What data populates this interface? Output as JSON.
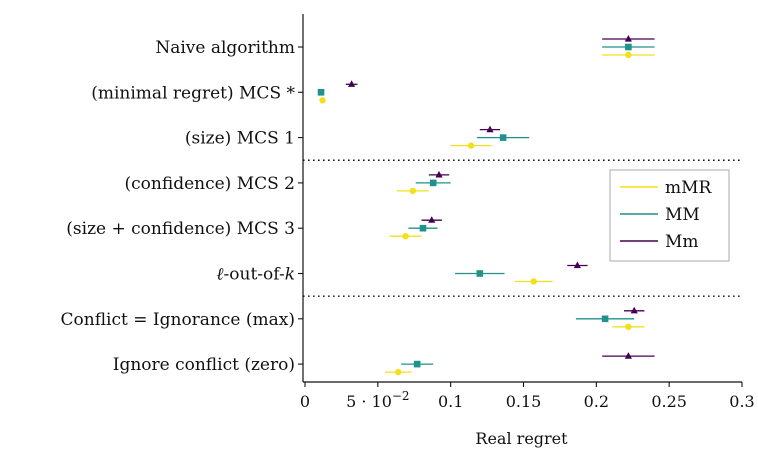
{
  "chart_data": {
    "type": "scatter",
    "subtype": "interval-dot-plot",
    "xlabel": "Real regret",
    "xlim": [
      0,
      0.3
    ],
    "xticks": [
      {
        "value": 0,
        "label": "0"
      },
      {
        "value": 0.05,
        "label": "5·10^-2",
        "base": "5 · 10",
        "exp": "−2"
      },
      {
        "value": 0.1,
        "label": "0.1"
      },
      {
        "value": 0.15,
        "label": "0.15"
      },
      {
        "value": 0.2,
        "label": "0.2"
      },
      {
        "value": 0.25,
        "label": "0.25"
      },
      {
        "value": 0.3,
        "label": "0.3"
      }
    ],
    "categories": [
      "Naive algorithm",
      "(minimal regret) MCS *",
      "(size) MCS 1",
      "(confidence) MCS 2",
      "(size + confidence) MCS 3",
      "ℓ-out-of-k",
      "Conflict = Ignorance (max)",
      "Ignore conflict (zero)"
    ],
    "separators_after_category_index": [
      2,
      5
    ],
    "grid": false,
    "legend_position": "right",
    "series": [
      {
        "name": "mMR",
        "color": "#f2e01b",
        "marker": "circle",
        "values": [
          {
            "mean": 0.222,
            "lo": 0.204,
            "hi": 0.24
          },
          {
            "mean": 0.012,
            "lo": 0.01,
            "hi": 0.014
          },
          {
            "mean": 0.114,
            "lo": 0.1,
            "hi": 0.128
          },
          {
            "mean": 0.074,
            "lo": 0.063,
            "hi": 0.085
          },
          {
            "mean": 0.069,
            "lo": 0.058,
            "hi": 0.08
          },
          {
            "mean": 0.157,
            "lo": 0.144,
            "hi": 0.17
          },
          {
            "mean": 0.222,
            "lo": 0.211,
            "hi": 0.233
          },
          {
            "mean": 0.064,
            "lo": 0.055,
            "hi": 0.073
          }
        ]
      },
      {
        "name": "MM",
        "color": "#21918c",
        "marker": "square",
        "values": [
          {
            "mean": 0.222,
            "lo": 0.204,
            "hi": 0.24
          },
          {
            "mean": 0.011,
            "lo": 0.009,
            "hi": 0.013
          },
          {
            "mean": 0.136,
            "lo": 0.118,
            "hi": 0.154
          },
          {
            "mean": 0.088,
            "lo": 0.076,
            "hi": 0.1
          },
          {
            "mean": 0.081,
            "lo": 0.071,
            "hi": 0.091
          },
          {
            "mean": 0.12,
            "lo": 0.103,
            "hi": 0.137
          },
          {
            "mean": 0.206,
            "lo": 0.186,
            "hi": 0.226
          },
          {
            "mean": 0.077,
            "lo": 0.066,
            "hi": 0.088
          }
        ]
      },
      {
        "name": "Mm",
        "color": "#440154",
        "marker": "triangle",
        "values": [
          {
            "mean": 0.222,
            "lo": 0.204,
            "hi": 0.24
          },
          {
            "mean": 0.032,
            "lo": 0.028,
            "hi": 0.036
          },
          {
            "mean": 0.127,
            "lo": 0.12,
            "hi": 0.134
          },
          {
            "mean": 0.092,
            "lo": 0.085,
            "hi": 0.099
          },
          {
            "mean": 0.087,
            "lo": 0.08,
            "hi": 0.094
          },
          {
            "mean": 0.187,
            "lo": 0.18,
            "hi": 0.194
          },
          {
            "mean": 0.226,
            "lo": 0.219,
            "hi": 0.233
          },
          {
            "mean": 0.222,
            "lo": 0.204,
            "hi": 0.24
          }
        ]
      }
    ]
  }
}
